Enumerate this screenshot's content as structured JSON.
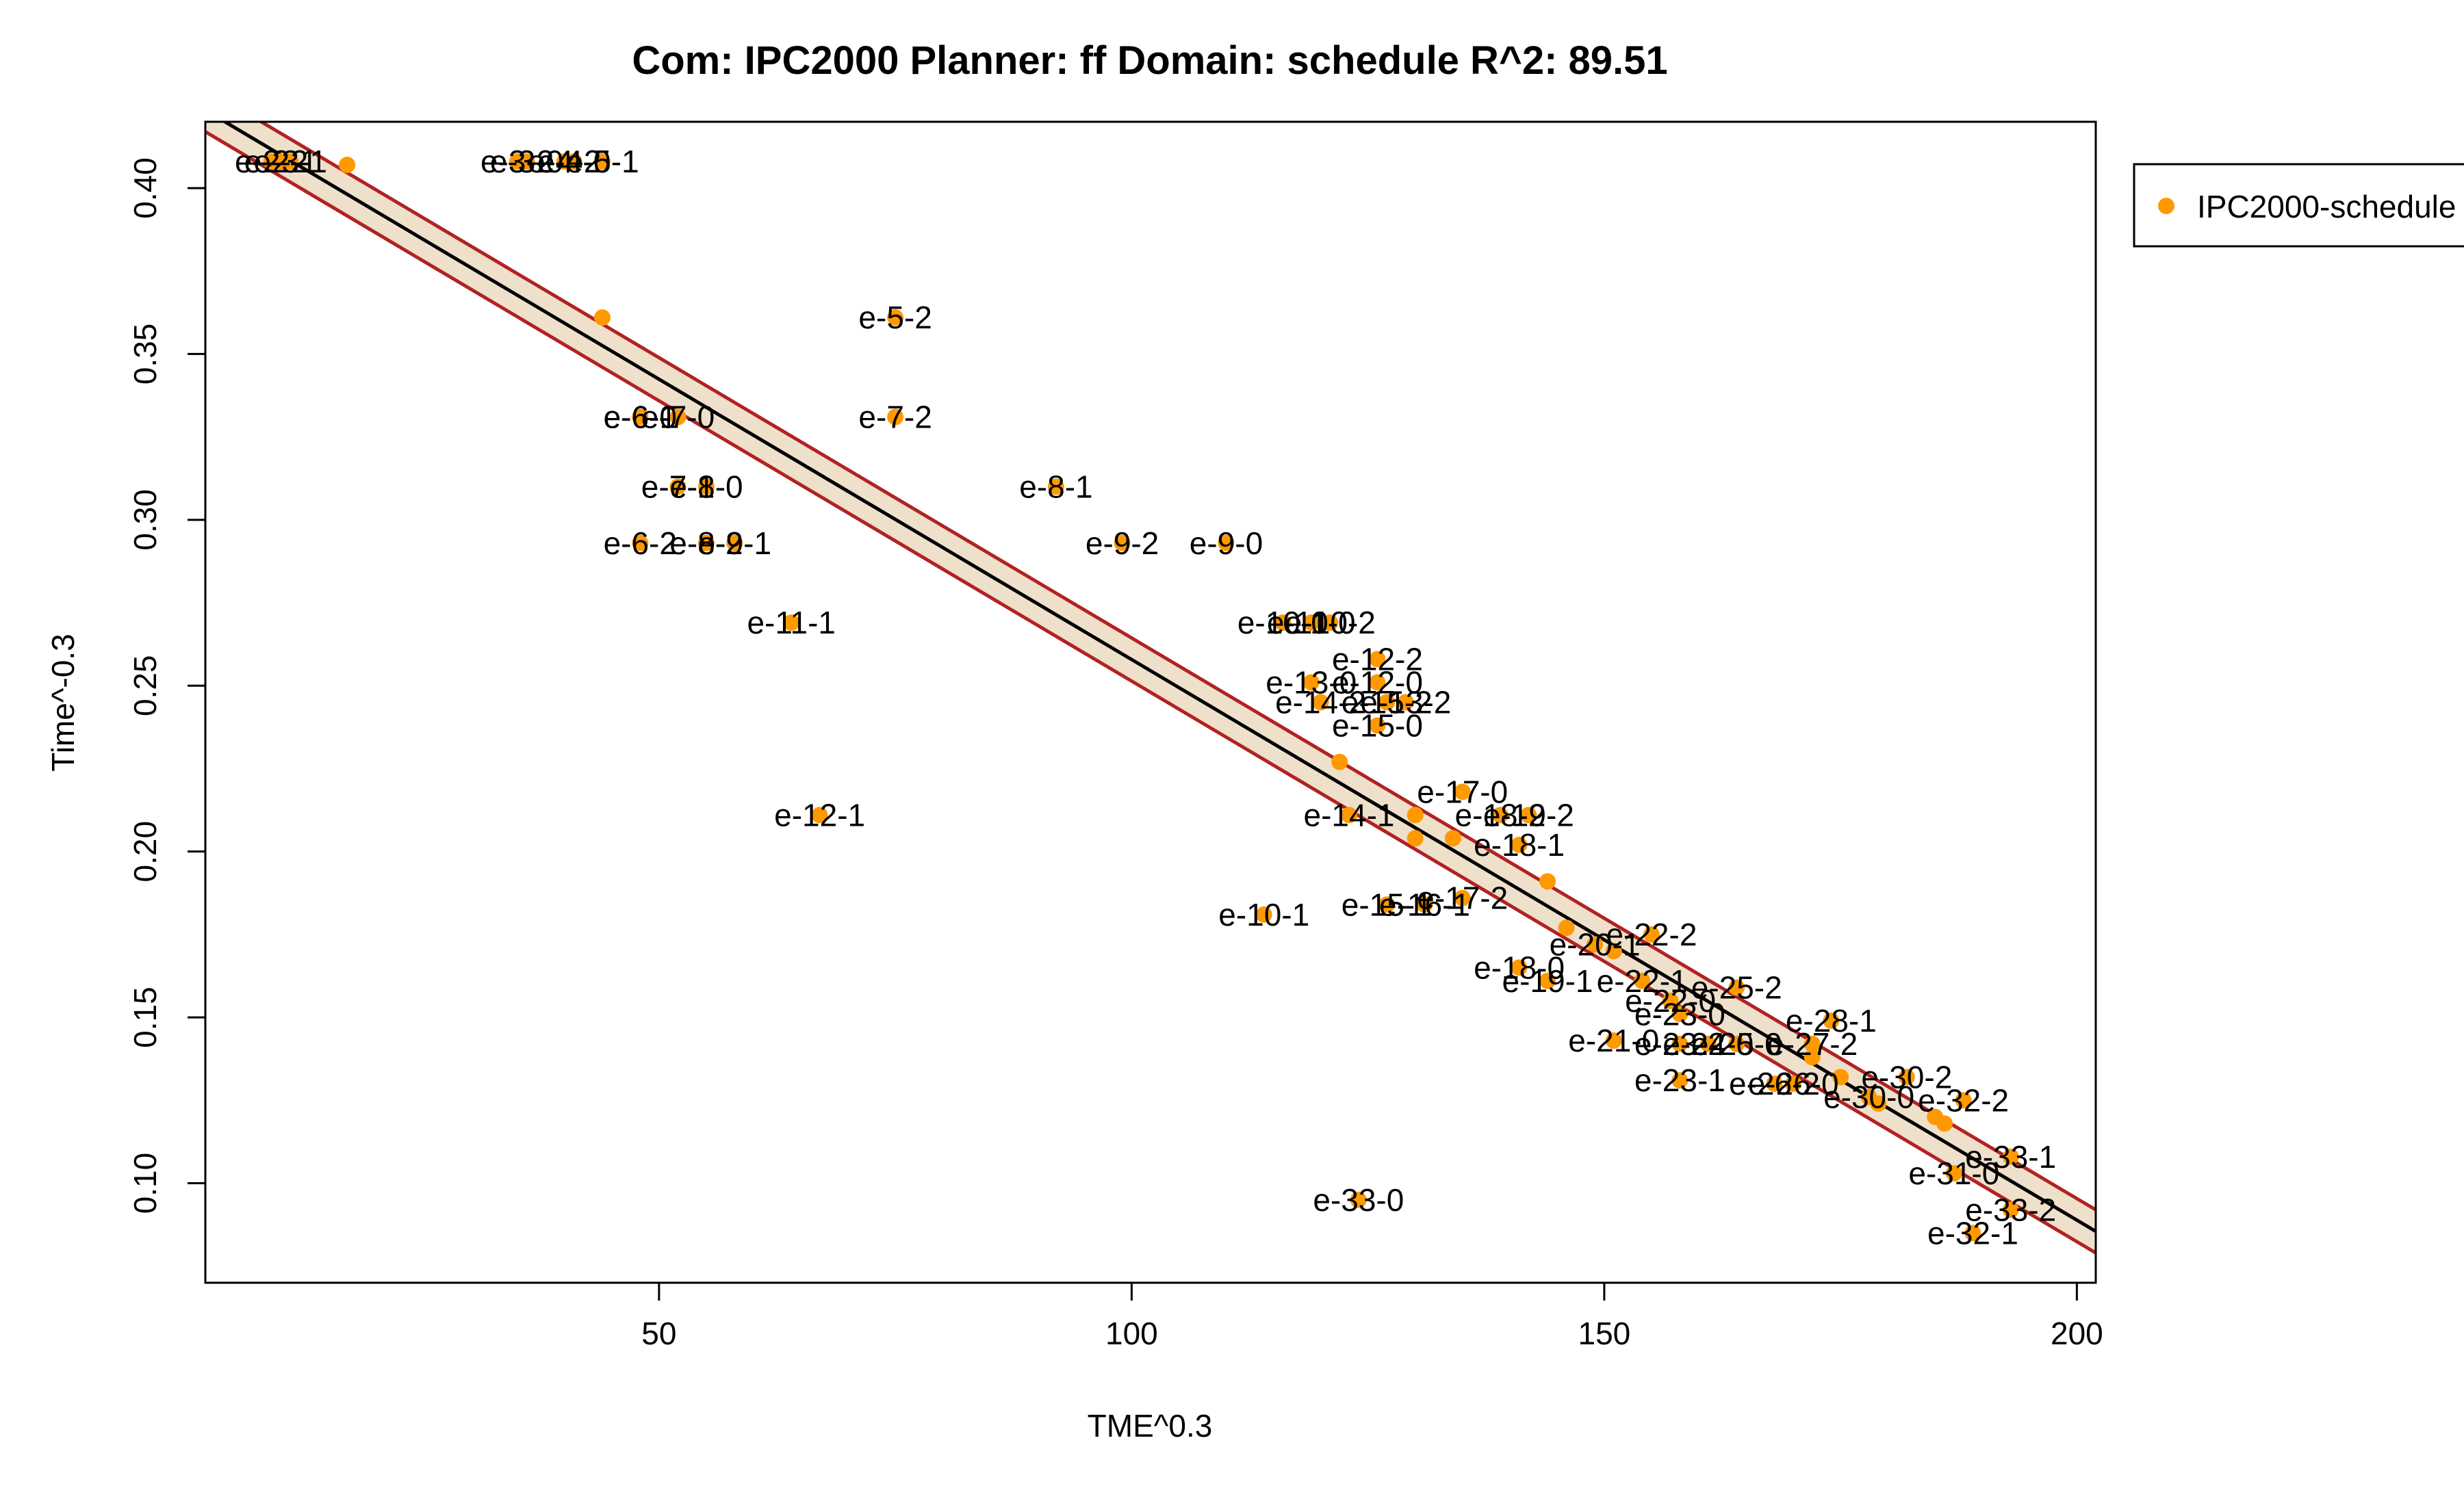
{
  "chart_data": {
    "type": "scatter",
    "title": "Com: IPC2000 Planner: ff Domain: schedule R^2: 89.51",
    "xlabel": "TME^0.3",
    "ylabel": "Time^-0.3",
    "xlim": [
      2,
      202
    ],
    "ylim": [
      0.07,
      0.42
    ],
    "xticks": [
      50,
      100,
      150,
      200
    ],
    "yticks": [
      0.1,
      0.15,
      0.2,
      0.25,
      0.3,
      0.35,
      0.4
    ],
    "ytick_labels": [
      "0.10",
      "0.15",
      "0.20",
      "0.25",
      "0.30",
      "0.35",
      "0.40"
    ],
    "grid": false,
    "legend": {
      "position": "top-right-outside",
      "entries": [
        "IPC2000-schedule"
      ]
    },
    "colors": {
      "points": "#FF9900",
      "fit_line": "#000000",
      "band_edge": "#B22222",
      "band_fill": "#EFE0CC"
    },
    "fit": {
      "x0": 2,
      "y0": 0.4235,
      "x1": 202,
      "y1": 0.0855,
      "band_halfwidth": 0.0065
    },
    "series": [
      {
        "name": "IPC2000-schedule",
        "points": [
          {
            "x": 9,
            "y": 0.408,
            "label": "e-2-2"
          },
          {
            "x": 10,
            "y": 0.408,
            "label": "e-2-1"
          },
          {
            "x": 11,
            "y": 0.408,
            "label": "e-3-1"
          },
          {
            "x": 17,
            "y": 0.407,
            "label": ""
          },
          {
            "x": 35,
            "y": 0.408,
            "label": "e-3-2"
          },
          {
            "x": 36,
            "y": 0.408,
            "label": "e-3-0"
          },
          {
            "x": 40,
            "y": 0.408,
            "label": "e-4-2"
          },
          {
            "x": 41,
            "y": 0.408,
            "label": "e-4-0"
          },
          {
            "x": 44,
            "y": 0.408,
            "label": "e-5-1"
          },
          {
            "x": 44,
            "y": 0.361,
            "label": ""
          },
          {
            "x": 75,
            "y": 0.361,
            "label": "e-5-2"
          },
          {
            "x": 48,
            "y": 0.331,
            "label": "e-6-0"
          },
          {
            "x": 48,
            "y": 0.331,
            "label": "e-6-1"
          },
          {
            "x": 52,
            "y": 0.331,
            "label": "e-7-0"
          },
          {
            "x": 75,
            "y": 0.331,
            "label": "e-7-2"
          },
          {
            "x": 52,
            "y": 0.31,
            "label": "e-7-1"
          },
          {
            "x": 55,
            "y": 0.31,
            "label": "e-8-0"
          },
          {
            "x": 92,
            "y": 0.31,
            "label": "e-8-1"
          },
          {
            "x": 48,
            "y": 0.293,
            "label": "e-6-2"
          },
          {
            "x": 55,
            "y": 0.293,
            "label": "e-8-2"
          },
          {
            "x": 58,
            "y": 0.293,
            "label": "e-9-1"
          },
          {
            "x": 99,
            "y": 0.293,
            "label": "e-9-2"
          },
          {
            "x": 110,
            "y": 0.293,
            "label": "e-9-0"
          },
          {
            "x": 64,
            "y": 0.269,
            "label": "e-11-1"
          },
          {
            "x": 116,
            "y": 0.269,
            "label": "e-10-0"
          },
          {
            "x": 119,
            "y": 0.269,
            "label": "e-11-0"
          },
          {
            "x": 121,
            "y": 0.269,
            "label": "e-10-2"
          },
          {
            "x": 126,
            "y": 0.258,
            "label": "e-12-2"
          },
          {
            "x": 119,
            "y": 0.251,
            "label": "e-13-0"
          },
          {
            "x": 126,
            "y": 0.251,
            "label": "e-12-0"
          },
          {
            "x": 120,
            "y": 0.245,
            "label": "e-14-2"
          },
          {
            "x": 127,
            "y": 0.245,
            "label": "e-15-2"
          },
          {
            "x": 129,
            "y": 0.245,
            "label": "e-13-2"
          },
          {
            "x": 126,
            "y": 0.238,
            "label": "e-15-0"
          },
          {
            "x": 122,
            "y": 0.227,
            "label": ""
          },
          {
            "x": 67,
            "y": 0.211,
            "label": "e-12-1"
          },
          {
            "x": 123,
            "y": 0.211,
            "label": "e-14-1"
          },
          {
            "x": 135,
            "y": 0.218,
            "label": "e-17-0"
          },
          {
            "x": 139,
            "y": 0.211,
            "label": "e-18-2"
          },
          {
            "x": 142,
            "y": 0.211,
            "label": "e-19-2"
          },
          {
            "x": 130,
            "y": 0.211,
            "label": ""
          },
          {
            "x": 130,
            "y": 0.204,
            "label": ""
          },
          {
            "x": 134,
            "y": 0.204,
            "label": ""
          },
          {
            "x": 141,
            "y": 0.202,
            "label": "e-18-1"
          },
          {
            "x": 144,
            "y": 0.191,
            "label": ""
          },
          {
            "x": 114,
            "y": 0.181,
            "label": "e-10-1"
          },
          {
            "x": 127,
            "y": 0.184,
            "label": "e-15-1"
          },
          {
            "x": 131,
            "y": 0.184,
            "label": "e-16-1"
          },
          {
            "x": 135,
            "y": 0.186,
            "label": "e-17-2"
          },
          {
            "x": 146,
            "y": 0.177,
            "label": ""
          },
          {
            "x": 149,
            "y": 0.172,
            "label": "e-20-1"
          },
          {
            "x": 151,
            "y": 0.17,
            "label": ""
          },
          {
            "x": 155,
            "y": 0.175,
            "label": "e-22-2"
          },
          {
            "x": 141,
            "y": 0.165,
            "label": "e-18-0"
          },
          {
            "x": 144,
            "y": 0.161,
            "label": "e-19-1"
          },
          {
            "x": 154,
            "y": 0.161,
            "label": "e-22-1"
          },
          {
            "x": 164,
            "y": 0.159,
            "label": "e-25-2"
          },
          {
            "x": 157,
            "y": 0.155,
            "label": "e-22-0"
          },
          {
            "x": 158,
            "y": 0.151,
            "label": "e-23-0"
          },
          {
            "x": 174,
            "y": 0.149,
            "label": "e-28-1"
          },
          {
            "x": 151,
            "y": 0.143,
            "label": "e-21-0"
          },
          {
            "x": 158,
            "y": 0.142,
            "label": "e-23-2"
          },
          {
            "x": 161,
            "y": 0.142,
            "label": "e-24-0"
          },
          {
            "x": 164,
            "y": 0.142,
            "label": "e-25-0"
          },
          {
            "x": 172,
            "y": 0.142,
            "label": "e-27-2"
          },
          {
            "x": 172,
            "y": 0.138,
            "label": ""
          },
          {
            "x": 158,
            "y": 0.131,
            "label": "e-23-1"
          },
          {
            "x": 168,
            "y": 0.13,
            "label": "e-26-2"
          },
          {
            "x": 170,
            "y": 0.13,
            "label": "e-26-0"
          },
          {
            "x": 175,
            "y": 0.132,
            "label": ""
          },
          {
            "x": 178,
            "y": 0.126,
            "label": "e-30-0"
          },
          {
            "x": 179,
            "y": 0.124,
            "label": ""
          },
          {
            "x": 182,
            "y": 0.132,
            "label": "e-30-2"
          },
          {
            "x": 185,
            "y": 0.12,
            "label": ""
          },
          {
            "x": 186,
            "y": 0.118,
            "label": ""
          },
          {
            "x": 188,
            "y": 0.125,
            "label": "e-32-2"
          },
          {
            "x": 187,
            "y": 0.103,
            "label": "e-31-0"
          },
          {
            "x": 193,
            "y": 0.108,
            "label": "e-33-1"
          },
          {
            "x": 193,
            "y": 0.092,
            "label": "e-33-2"
          },
          {
            "x": 189,
            "y": 0.085,
            "label": "e-32-1"
          },
          {
            "x": 124,
            "y": 0.095,
            "label": "e-33-0"
          }
        ]
      }
    ]
  }
}
